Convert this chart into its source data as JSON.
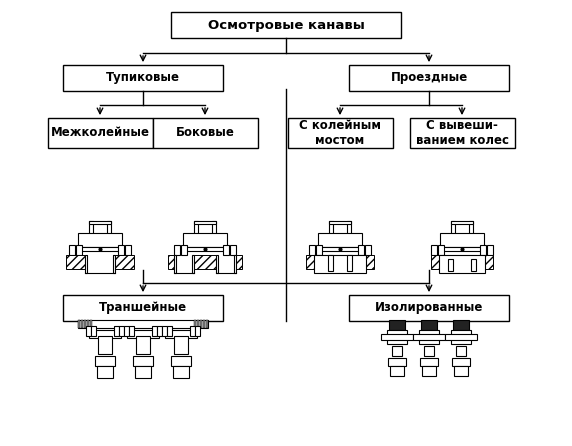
{
  "title": "Осмотровые канавы",
  "node_tupik": "Тупиковые",
  "node_proezd": "Проездные",
  "node_mezhk": "Межколейные",
  "node_bokov": "Боковые",
  "node_kolein": "С колейным\nмостом",
  "node_vyvesh": "С вывеши-\nванием колес",
  "node_transh": "Траншейные",
  "node_izolir": "Изолированные",
  "bg_color": "#ffffff",
  "box_facecolor": "#ffffff",
  "box_edgecolor": "#000000",
  "line_color": "#000000",
  "text_color": "#000000",
  "font_size": 8.5,
  "title_font_size": 9.5,
  "fig_w": 5.72,
  "fig_h": 4.46,
  "dpi": 100
}
